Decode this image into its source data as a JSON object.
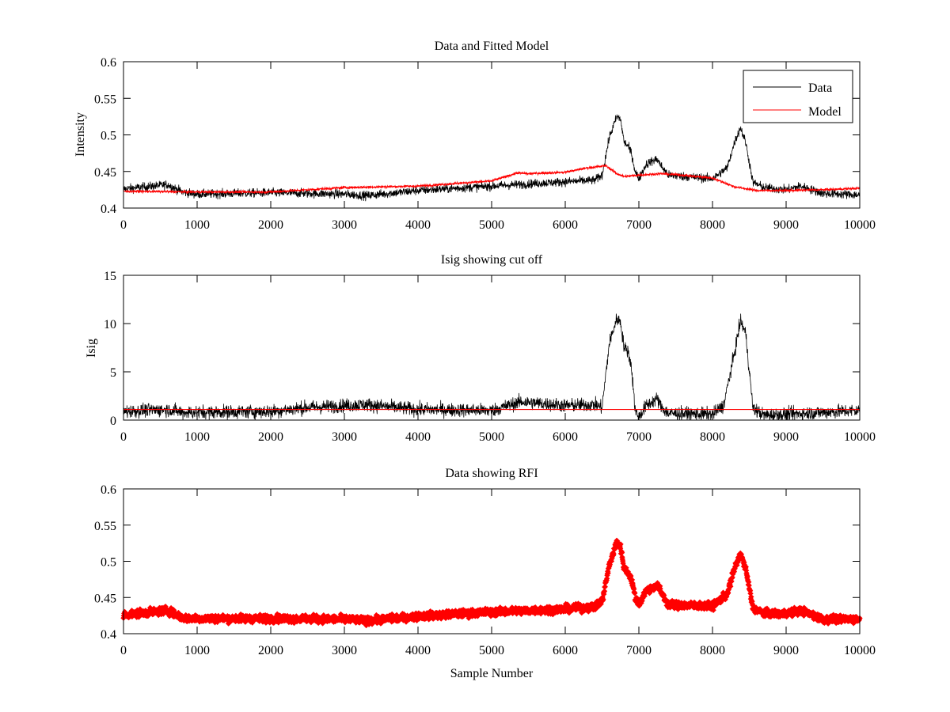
{
  "chart_data": [
    {
      "type": "line",
      "title": "Data and Fitted Model",
      "xlabel": "",
      "ylabel": "Intensity",
      "xlim": [
        0,
        10000
      ],
      "ylim": [
        0.4,
        0.6
      ],
      "xticks": [
        "0",
        "1000",
        "2000",
        "3000",
        "4000",
        "5000",
        "6000",
        "7000",
        "8000",
        "9000",
        "10000"
      ],
      "yticks": [
        "0.4",
        "0.45",
        "0.5",
        "0.55",
        "0.6"
      ],
      "legend": {
        "position": "top-right",
        "entries": [
          "Data",
          "Model"
        ]
      },
      "series": [
        {
          "name": "Data",
          "color": "#000000",
          "noise": 0.006,
          "x": [
            0,
            300,
            600,
            800,
            1000,
            2000,
            3000,
            3300,
            4000,
            5000,
            6000,
            6400,
            6500,
            6600,
            6700,
            6750,
            6800,
            6850,
            6900,
            6950,
            7000,
            7100,
            7200,
            7250,
            7300,
            7400,
            8000,
            8200,
            8300,
            8380,
            8450,
            8550,
            8700,
            9000,
            9200,
            9500,
            10000
          ],
          "y": [
            0.426,
            0.429,
            0.432,
            0.422,
            0.419,
            0.421,
            0.419,
            0.417,
            0.424,
            0.43,
            0.436,
            0.438,
            0.445,
            0.497,
            0.525,
            0.522,
            0.49,
            0.485,
            0.475,
            0.45,
            0.44,
            0.46,
            0.465,
            0.467,
            0.458,
            0.445,
            0.44,
            0.455,
            0.49,
            0.51,
            0.49,
            0.435,
            0.428,
            0.425,
            0.43,
            0.42,
            0.418
          ]
        },
        {
          "name": "Model",
          "color": "#ff0000",
          "noise": 0.0015,
          "x": [
            0,
            1000,
            2000,
            3000,
            4000,
            5000,
            5350,
            5500,
            6000,
            6300,
            6500,
            6550,
            6700,
            6800,
            7000,
            7300,
            7600,
            8000,
            8300,
            8600,
            9000,
            9500,
            10000
          ],
          "y": [
            0.423,
            0.422,
            0.422,
            0.428,
            0.43,
            0.437,
            0.448,
            0.447,
            0.449,
            0.455,
            0.457,
            0.458,
            0.447,
            0.443,
            0.445,
            0.447,
            0.445,
            0.441,
            0.429,
            0.424,
            0.424,
            0.425,
            0.427
          ]
        }
      ]
    },
    {
      "type": "line",
      "title": "Isig showing cut off",
      "xlabel": "",
      "ylabel": "Isig",
      "xlim": [
        0,
        10000
      ],
      "ylim": [
        0,
        15
      ],
      "xticks": [
        "0",
        "1000",
        "2000",
        "3000",
        "4000",
        "5000",
        "6000",
        "7000",
        "8000",
        "9000",
        "10000"
      ],
      "yticks": [
        "0",
        "5",
        "10",
        "15"
      ],
      "series": [
        {
          "name": "Isig",
          "color": "#000000",
          "noise": 0.7,
          "x": [
            0,
            600,
            800,
            2000,
            2500,
            3000,
            3300,
            4000,
            5000,
            5400,
            6000,
            6400,
            6500,
            6600,
            6700,
            6750,
            6800,
            6850,
            6900,
            6950,
            7000,
            7100,
            7200,
            7250,
            7300,
            7400,
            8000,
            8150,
            8300,
            8380,
            8450,
            8550,
            8700,
            9000,
            9500,
            10000
          ],
          "y": [
            0.9,
            1.1,
            0.8,
            0.9,
            1.3,
            1.5,
            1.6,
            1.1,
            1.0,
            1.9,
            1.5,
            1.6,
            1.3,
            8.0,
            10.5,
            10.2,
            7.5,
            7.2,
            5.5,
            1.0,
            0.3,
            1.5,
            2.0,
            2.2,
            1.4,
            0.7,
            0.6,
            1.5,
            7.0,
            10.3,
            9.0,
            1.2,
            0.5,
            0.6,
            0.8,
            1.0
          ]
        },
        {
          "name": "Cut off",
          "color": "#ff0000",
          "x": [
            0,
            10000
          ],
          "y": [
            1.1,
            1.1
          ]
        }
      ]
    },
    {
      "type": "scatter",
      "title": "Data showing RFI",
      "xlabel": "Sample Number",
      "ylabel": "",
      "xlim": [
        0,
        10000
      ],
      "ylim": [
        0.4,
        0.6
      ],
      "xticks": [
        "0",
        "1000",
        "2000",
        "3000",
        "4000",
        "5000",
        "6000",
        "7000",
        "8000",
        "9000",
        "10000"
      ],
      "yticks": [
        "0.4",
        "0.45",
        "0.5",
        "0.55",
        "0.6"
      ],
      "series": [
        {
          "name": "RFI",
          "color": "#ff0000",
          "noise": 0.005,
          "x": [
            0,
            300,
            600,
            800,
            1000,
            2000,
            3000,
            3300,
            4000,
            5000,
            6000,
            6400,
            6500,
            6600,
            6700,
            6750,
            6800,
            6850,
            6900,
            6950,
            7000,
            7100,
            7200,
            7250,
            7300,
            7400,
            8000,
            8200,
            8300,
            8380,
            8450,
            8550,
            8700,
            9000,
            9200,
            9500,
            10000
          ],
          "y": [
            0.426,
            0.429,
            0.432,
            0.422,
            0.421,
            0.421,
            0.42,
            0.418,
            0.424,
            0.43,
            0.434,
            0.437,
            0.445,
            0.495,
            0.527,
            0.52,
            0.49,
            0.485,
            0.475,
            0.45,
            0.44,
            0.46,
            0.465,
            0.467,
            0.458,
            0.44,
            0.438,
            0.455,
            0.49,
            0.51,
            0.49,
            0.435,
            0.428,
            0.428,
            0.432,
            0.42,
            0.42
          ]
        }
      ]
    }
  ]
}
